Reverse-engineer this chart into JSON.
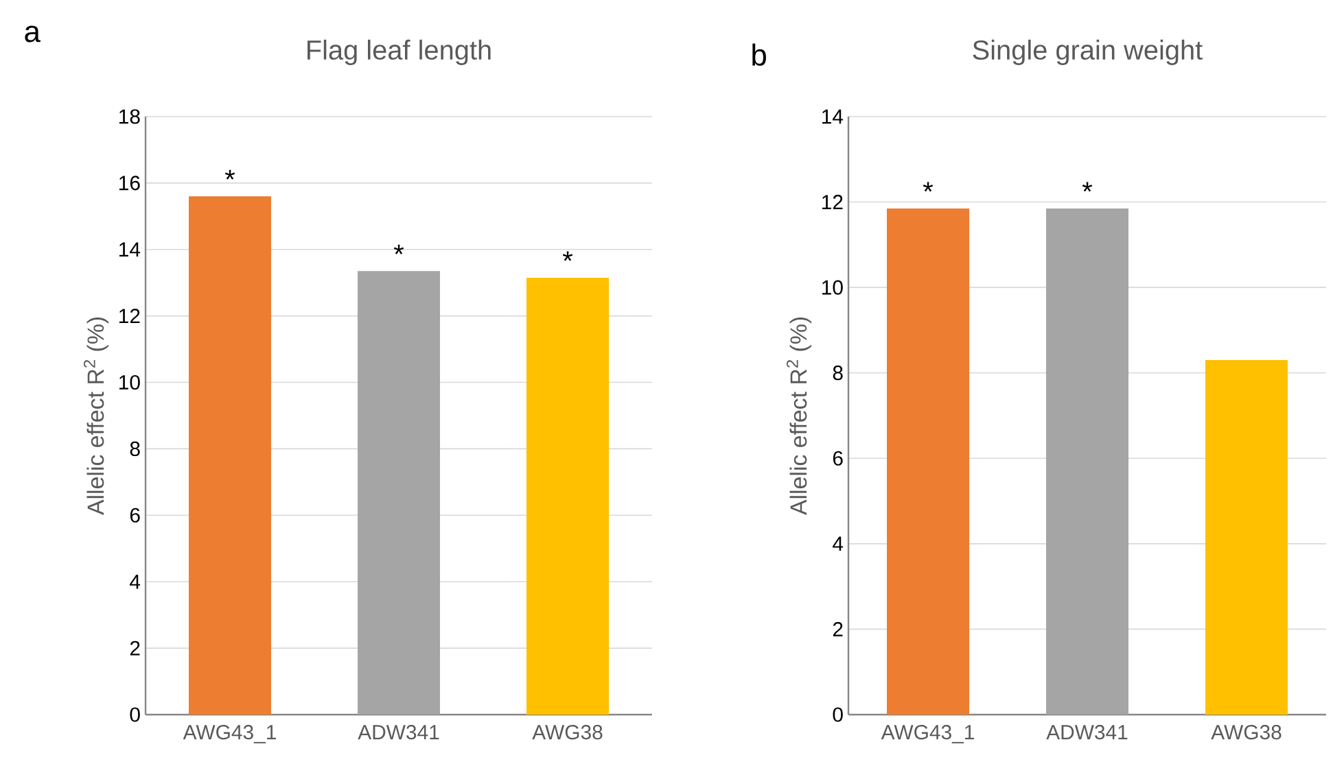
{
  "chart_data": [
    {
      "type": "bar",
      "title": "Flag leaf length",
      "ylabel": "Allelic effect R$^{2}$ (%)",
      "categories": [
        "AWG43_1",
        "ADW341",
        "AWG38"
      ],
      "values": [
        15.6,
        13.35,
        13.15
      ],
      "colors": [
        "#ed7d31",
        "#a5a5a5",
        "#ffc000"
      ],
      "ylim": [
        0,
        18
      ],
      "yticks": [
        0,
        2,
        4,
        6,
        8,
        10,
        12,
        14,
        16,
        18
      ],
      "grid": "y",
      "annotations": [
        "a",
        "*",
        "*",
        "*"
      ]
    },
    {
      "type": "bar",
      "title": "Single grain weight",
      "ylabel": "Allelic effect R$^{2}$ (%)",
      "categories": [
        "AWG43_1",
        "ADW341",
        "AWG38"
      ],
      "values": [
        11.85,
        11.85,
        8.3
      ],
      "colors": [
        "#ed7d31",
        "#a5a5a5",
        "#ffc000"
      ],
      "ylim": [
        0,
        14
      ],
      "yticks": [
        0,
        2,
        4,
        6,
        8,
        10,
        12,
        14
      ],
      "grid": "y",
      "annotations": [
        "b",
        "*",
        "*"
      ]
    }
  ]
}
